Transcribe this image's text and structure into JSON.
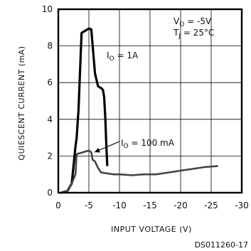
{
  "chart_data": {
    "type": "line",
    "xlabel": "INPUT VOLTAGE (V)",
    "ylabel": "QUIESCENT CURRENT (mA)",
    "xlim": [
      0,
      -30
    ],
    "ylim": [
      0,
      10
    ],
    "xticks": [
      0,
      -5,
      -10,
      -15,
      -20,
      -25,
      -30
    ],
    "xtick_labels": [
      "0",
      "-5",
      "-10",
      "-15",
      "-20",
      "-25",
      "-30"
    ],
    "yticks": [
      0,
      2,
      4,
      6,
      8,
      10
    ],
    "ytick_labels": [
      "0",
      "2",
      "4",
      "6",
      "8",
      "10"
    ],
    "grid": true,
    "conditions": [
      "V",
      "O",
      " = -5V",
      "T",
      "J",
      " = 25°C"
    ],
    "series": [
      {
        "name": "IO = 1A",
        "label_main": "I",
        "label_sub": "O",
        "label_rest": " = 1A",
        "x": [
          -0.5,
          -1.5,
          -2.2,
          -2.8,
          -3.0,
          -3.3,
          -3.8,
          -4.0,
          -4.5,
          -5.0,
          -5.4,
          -6.0,
          -6.5,
          -7.0,
          -7.3,
          -7.5,
          -7.7,
          -7.8,
          -8.0
        ],
        "y": [
          0.0,
          0.1,
          0.5,
          2.5,
          3.0,
          4.5,
          8.7,
          8.75,
          8.85,
          8.95,
          8.9,
          6.5,
          5.8,
          5.7,
          5.6,
          5.2,
          4.0,
          3.0,
          1.5
        ],
        "color": "#000000"
      },
      {
        "name": "IO = 100 mA",
        "label_main": "I",
        "label_sub": "O",
        "label_rest": " = 100 mA",
        "x": [
          -0.5,
          -1.5,
          -2.2,
          -2.8,
          -3.0,
          -3.5,
          -4.0,
          -4.5,
          -5.0,
          -5.4,
          -5.6,
          -6.0,
          -6.5,
          -7.0,
          -8.0,
          -9.0,
          -10.0,
          -12.0,
          -14.0,
          -16.0,
          -18.0,
          -20.0,
          -22.0,
          -24.0,
          -26.0
        ],
        "y": [
          0.0,
          0.1,
          0.5,
          1.0,
          2.1,
          2.15,
          2.2,
          2.25,
          2.3,
          2.2,
          1.8,
          1.7,
          1.35,
          1.1,
          1.05,
          1.0,
          1.0,
          0.95,
          1.0,
          1.0,
          1.1,
          1.2,
          1.3,
          1.4,
          1.45
        ],
        "color": "#444444"
      }
    ]
  },
  "figure_code": "DS011260-17"
}
